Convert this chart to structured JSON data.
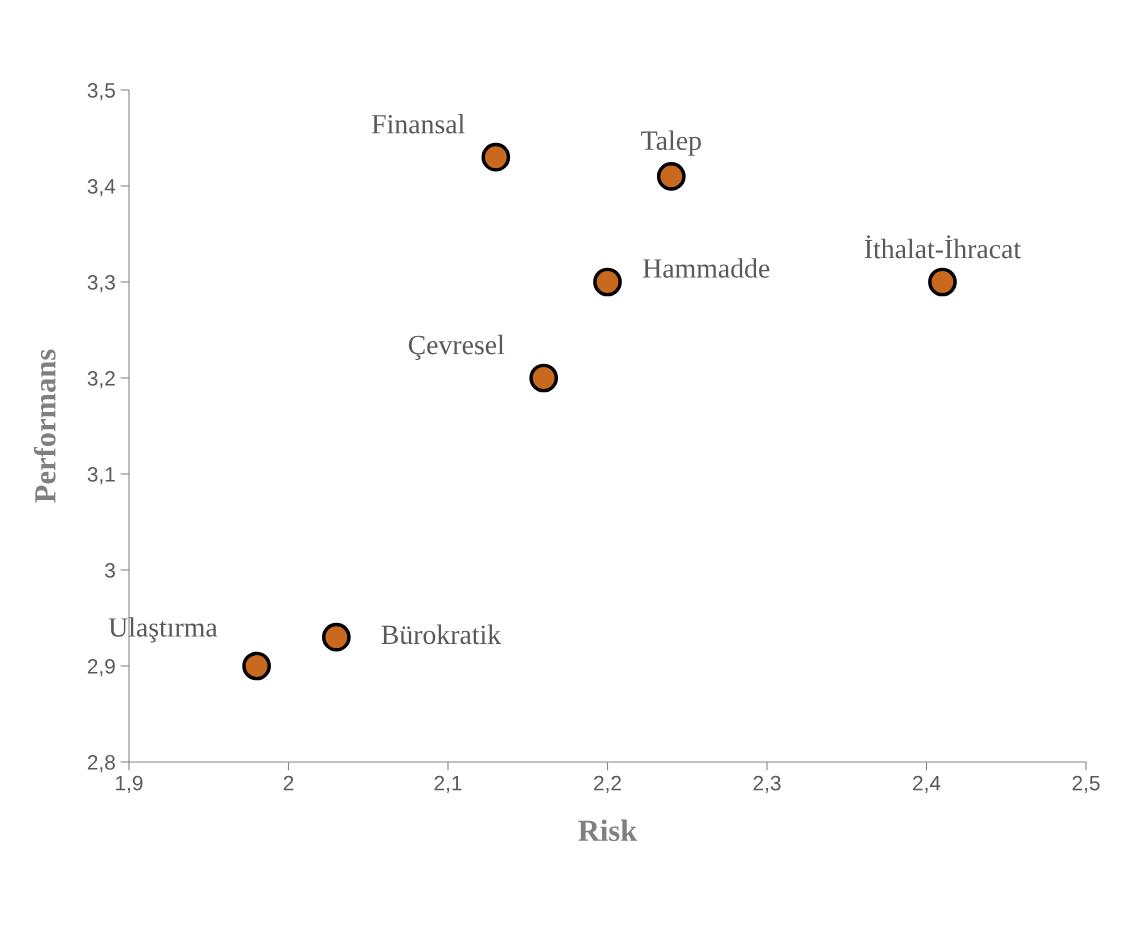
{
  "chart_data": {
    "type": "scatter",
    "xlabel": "Risk",
    "ylabel": "Performans",
    "x": [
      2.13,
      2.24,
      2.2,
      2.41,
      2.16,
      1.98,
      2.03
    ],
    "values": [
      3.43,
      3.41,
      3.3,
      3.3,
      3.2,
      2.9,
      2.93
    ],
    "color": "#c8691f",
    "marker": "circle",
    "grid": false,
    "legend": false,
    "xlim": [
      1.9,
      2.5
    ],
    "xticks": [
      {
        "value": 1.9,
        "label": "1,9"
      },
      2,
      {
        "value": 2.1,
        "label": "2,1"
      },
      {
        "value": 2.2,
        "label": "2,2"
      },
      {
        "value": 2.3,
        "label": "2,3"
      },
      {
        "value": 2.4,
        "label": "2,4"
      },
      {
        "value": 2.5,
        "label": "2,5"
      }
    ],
    "ylim": [
      2.8,
      3.5
    ],
    "yticks": [
      {
        "value": 2.8,
        "label": "2,8"
      },
      {
        "value": 2.9,
        "label": "2,9"
      },
      3,
      {
        "value": 3.1,
        "label": "3,1"
      },
      {
        "value": 3.2,
        "label": "3,2"
      },
      {
        "value": 3.3,
        "label": "3,3"
      },
      {
        "value": 3.4,
        "label": "3,4"
      },
      {
        "value": 3.5,
        "label": "3,5"
      }
    ],
    "annotations": [
      {
        "text": "Finansal",
        "x": 2.13,
        "y": 3.43
      },
      {
        "text": "Talep",
        "x": 2.24,
        "y": 3.41
      },
      {
        "text": "Hammadde",
        "x": 2.2,
        "y": 3.3
      },
      {
        "text": "İthalat-İhracat",
        "x": 2.41,
        "y": 3.3
      },
      {
        "text": "Çevresel",
        "x": 2.16,
        "y": 3.2
      },
      {
        "text": "Ulaştırma",
        "x": 1.98,
        "y": 2.9
      },
      {
        "text": "Bürokratik",
        "x": 2.03,
        "y": 2.93
      }
    ]
  }
}
